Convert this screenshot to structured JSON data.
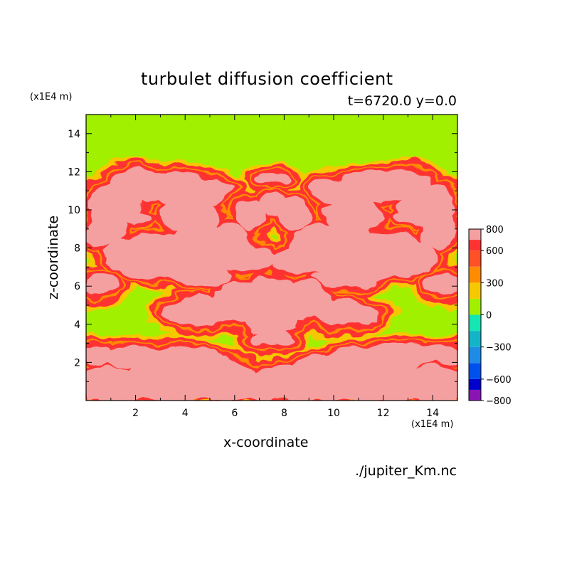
{
  "chart_data": {
    "type": "heatmap",
    "title": "turbulet diffusion coefficient",
    "subtitle": "t=6720.0 y=0.0",
    "xlabel": "x-coordinate",
    "ylabel": "z-coordinate",
    "x_unit": "(x1E4 m)",
    "z_unit": "(x1E4 m)",
    "xlim": [
      0,
      15
    ],
    "ylim": [
      0,
      15
    ],
    "x_ticks": [
      "2",
      "4",
      "6",
      "8",
      "10",
      "12",
      "14"
    ],
    "y_ticks": [
      "2",
      "4",
      "6",
      "8",
      "10",
      "12",
      "14"
    ],
    "colorbar": {
      "levels": [
        -800,
        -700,
        -600,
        -450,
        -300,
        -150,
        0,
        150,
        300,
        450,
        600,
        700,
        800
      ],
      "tick_labels": [
        "800",
        "600",
        "300",
        "0",
        "−300",
        "−600",
        "−800"
      ],
      "tick_values": [
        800,
        600,
        300,
        0,
        -300,
        -600,
        -800
      ],
      "colors": [
        "#8a14b4",
        "#0000cc",
        "#0050ee",
        "#1e8ce6",
        "#14b4c8",
        "#14e6b4",
        "#a0f000",
        "#f5c800",
        "#ff8c00",
        "#ff5028",
        "#ff3232",
        "#f5a0a0"
      ]
    },
    "background_value": 0,
    "dominant_values": [
      0,
      150,
      300,
      600,
      800
    ],
    "source": "./jupiter_Km.nc"
  }
}
